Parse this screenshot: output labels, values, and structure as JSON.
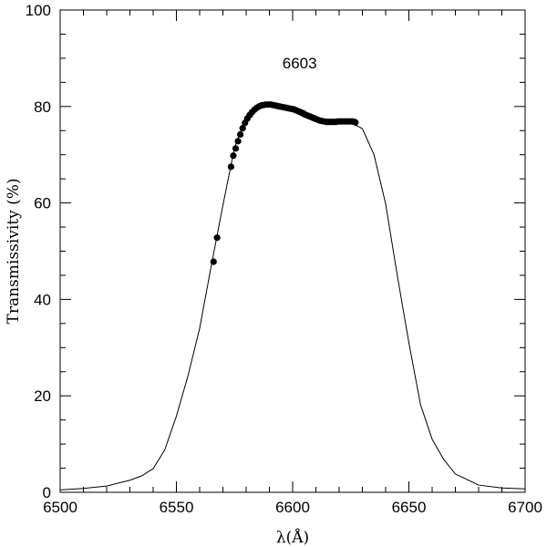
{
  "chart_data": {
    "type": "line",
    "title": "",
    "annotation": "6603",
    "xlabel": "λ(Å)",
    "ylabel": "Transmissivity (%)",
    "xlim": [
      6500,
      6700
    ],
    "ylim": [
      0,
      100
    ],
    "xticks": [
      6500,
      6550,
      6600,
      6650,
      6700
    ],
    "yticks": [
      0,
      20,
      40,
      60,
      80,
      100
    ],
    "grid": false,
    "series": [
      {
        "kind": "line",
        "x": [
          6500,
          6510,
          6520,
          6530,
          6535,
          6540,
          6545,
          6550,
          6555,
          6560,
          6565,
          6570,
          6575,
          6580,
          6585,
          6590,
          6595,
          6600,
          6605,
          6610,
          6615,
          6620,
          6625,
          6630,
          6635,
          6640,
          6645,
          6650,
          6655,
          6660,
          6665,
          6670,
          6680,
          6690,
          6700
        ],
        "y": [
          0.5,
          0.8,
          1.3,
          2.5,
          3.4,
          4.9,
          8.8,
          15.8,
          24.2,
          34.0,
          47.0,
          59.5,
          71.5,
          77.8,
          79.9,
          80.3,
          80.0,
          79.0,
          77.8,
          77.0,
          76.8,
          77.0,
          76.7,
          75.4,
          70.0,
          59.8,
          45.0,
          31.0,
          18.2,
          11.0,
          6.8,
          3.8,
          1.5,
          0.9,
          0.7
        ]
      },
      {
        "kind": "points",
        "x": [
          6566.0,
          6567.5,
          6573.5,
          6574.5,
          6575.5,
          6576.5,
          6577.5,
          6578.5,
          6579.5,
          6580.5,
          6581.5,
          6582.5,
          6583.5,
          6584.5,
          6585.5,
          6586.5,
          6587.5,
          6588.5,
          6589.5,
          6590.5,
          6591.5,
          6592.5,
          6593.5,
          6594.5,
          6595.5,
          6596.5,
          6597.5,
          6598.5,
          6599.5,
          6600.5,
          6601.5,
          6602.5,
          6603.5,
          6604.5,
          6605.5,
          6606.5,
          6607.5,
          6608.5,
          6609.5,
          6610.5,
          6611.5,
          6612.5,
          6613.5,
          6614.5,
          6615.5,
          6616.5,
          6617.5,
          6618.5,
          6619.5,
          6620.5,
          6621.5,
          6622.5,
          6623.5,
          6624.5,
          6625.5,
          6626.5,
          6627.0
        ],
        "y": [
          47.8,
          52.8,
          67.5,
          69.8,
          71.3,
          72.8,
          74.2,
          75.5,
          76.6,
          77.5,
          78.2,
          78.8,
          79.3,
          79.7,
          80.0,
          80.2,
          80.3,
          80.4,
          80.4,
          80.4,
          80.3,
          80.2,
          80.1,
          80.0,
          79.9,
          79.8,
          79.7,
          79.6,
          79.5,
          79.4,
          79.2,
          79.0,
          78.8,
          78.6,
          78.3,
          78.1,
          77.9,
          77.7,
          77.5,
          77.3,
          77.1,
          77.0,
          76.9,
          76.8,
          76.8,
          76.8,
          76.8,
          76.8,
          76.9,
          76.9,
          76.9,
          76.9,
          76.9,
          76.9,
          76.9,
          76.8,
          76.7
        ]
      }
    ]
  }
}
